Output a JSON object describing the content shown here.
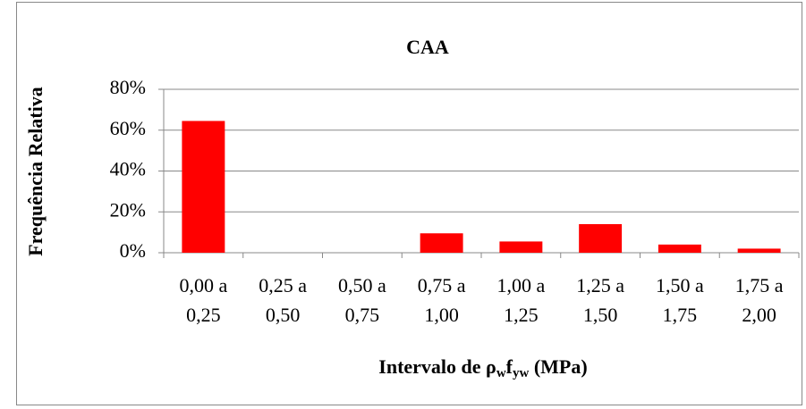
{
  "chart_data": {
    "type": "bar",
    "title": "CAA",
    "y_label": "Frequência Relativa",
    "x_label": {
      "text": "Intervalo de ",
      "rho": "ρ",
      "rho_sub": "w",
      "f": "f",
      "f_sub": "yw",
      "unit": " (MPa)"
    },
    "categories": [
      [
        "0,00 a",
        "0,25"
      ],
      [
        "0,25 a",
        "0,50"
      ],
      [
        "0,50 a",
        "0,75"
      ],
      [
        "0,75 a",
        "1,00"
      ],
      [
        "1,00 a",
        "1,25"
      ],
      [
        "1,25 a",
        "1,50"
      ],
      [
        "1,50 a",
        "1,75"
      ],
      [
        "1,75 a",
        "2,00"
      ]
    ],
    "values": [
      64.5,
      0,
      0,
      9.5,
      5.5,
      14,
      4,
      2
    ],
    "color": "#ff0000",
    "ylim": [
      0,
      80
    ],
    "yticks": [
      {
        "value": 0,
        "label": "0%"
      },
      {
        "value": 20,
        "label": "20%"
      },
      {
        "value": 40,
        "label": "40%"
      },
      {
        "value": 60,
        "label": "60%"
      },
      {
        "value": 80,
        "label": "80%"
      }
    ],
    "grid": true
  }
}
